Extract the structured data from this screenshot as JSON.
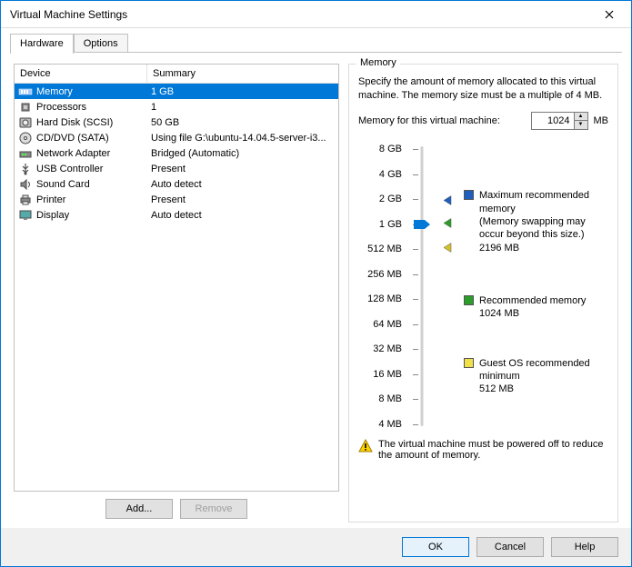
{
  "window": {
    "title": "Virtual Machine Settings"
  },
  "tabs": {
    "hardware": "Hardware",
    "options": "Options",
    "active": "hardware"
  },
  "deviceList": {
    "headers": {
      "device": "Device",
      "summary": "Summary"
    },
    "rows": [
      {
        "icon": "memory",
        "name": "Memory",
        "summary": "1 GB",
        "selected": true
      },
      {
        "icon": "cpu",
        "name": "Processors",
        "summary": "1",
        "selected": false
      },
      {
        "icon": "disk",
        "name": "Hard Disk (SCSI)",
        "summary": "50 GB",
        "selected": false
      },
      {
        "icon": "cd",
        "name": "CD/DVD (SATA)",
        "summary": "Using file G:\\ubuntu-14.04.5-server-i3...",
        "selected": false
      },
      {
        "icon": "net",
        "name": "Network Adapter",
        "summary": "Bridged (Automatic)",
        "selected": false
      },
      {
        "icon": "usb",
        "name": "USB Controller",
        "summary": "Present",
        "selected": false
      },
      {
        "icon": "sound",
        "name": "Sound Card",
        "summary": "Auto detect",
        "selected": false
      },
      {
        "icon": "printer",
        "name": "Printer",
        "summary": "Present",
        "selected": false
      },
      {
        "icon": "display",
        "name": "Display",
        "summary": "Auto detect",
        "selected": false
      }
    ],
    "buttons": {
      "add": "Add...",
      "remove": "Remove",
      "remove_enabled": false
    }
  },
  "memoryPanel": {
    "groupLabel": "Memory",
    "description": "Specify the amount of memory allocated to this virtual machine. The memory size must be a multiple of 4 MB.",
    "inputLabel": "Memory for this virtual machine:",
    "value": "1024",
    "unit": "MB",
    "slider": {
      "ticks": [
        "8 GB",
        "4 GB",
        "2 GB",
        "1 GB",
        "512 MB",
        "256 MB",
        "128 MB",
        "64 MB",
        "32 MB",
        "16 MB",
        "8 MB",
        "4 MB"
      ],
      "tickStepPct": 8.6,
      "topOffsetPct": 3,
      "thumbIndex": 3,
      "pointers": {
        "max": {
          "index": 2.1,
          "color": "#1e5fbf"
        },
        "rec": {
          "index": 3.0,
          "color": "#2a9d2a"
        },
        "guest": {
          "index": 4.0,
          "color": "#d4c12a"
        }
      }
    },
    "legend": {
      "max": {
        "swatch": "#1e5fbf",
        "title": "Maximum recommended memory",
        "note": "(Memory swapping may occur beyond this size.)",
        "value": "2196 MB"
      },
      "rec": {
        "swatch": "#2a9d2a",
        "title": "Recommended memory",
        "value": "1024 MB"
      },
      "guest": {
        "swatch": "#f0e04a",
        "title": "Guest OS recommended minimum",
        "value": "512 MB"
      }
    },
    "warning": "The virtual machine must be powered off to reduce the amount of memory."
  },
  "footer": {
    "ok": "OK",
    "cancel": "Cancel",
    "help": "Help"
  },
  "colors": {
    "selection": "#0078d7",
    "border": "#c0c0c0",
    "thumb": "#0078d7"
  }
}
